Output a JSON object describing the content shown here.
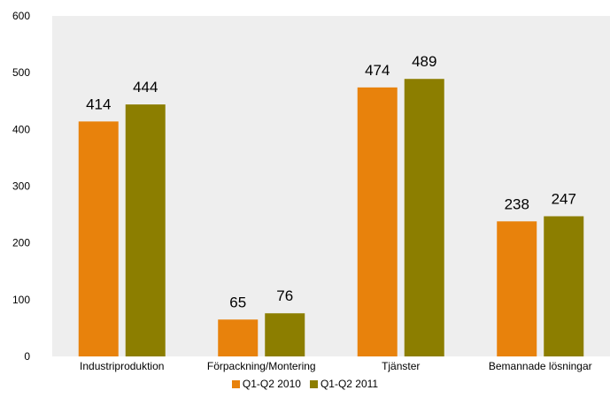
{
  "chart_data": {
    "type": "bar",
    "title": "",
    "xlabel": "",
    "ylabel": "",
    "ylim": [
      0,
      600
    ],
    "yticks": [
      0,
      100,
      200,
      300,
      400,
      500,
      600
    ],
    "grid": false,
    "legend_position": "bottom",
    "categories": [
      "Industriproduktion",
      "Förpackning/Montering",
      "Tjänster",
      "Bemannade lösningar"
    ],
    "series": [
      {
        "name": "Q1-Q2 2010",
        "color": "#E8820C",
        "values": [
          414,
          65,
          474,
          238
        ]
      },
      {
        "name": "Q1-Q2 2011",
        "color": "#8C7E00",
        "values": [
          444,
          76,
          489,
          247
        ]
      }
    ],
    "plot_background": "#EEEEEE"
  }
}
